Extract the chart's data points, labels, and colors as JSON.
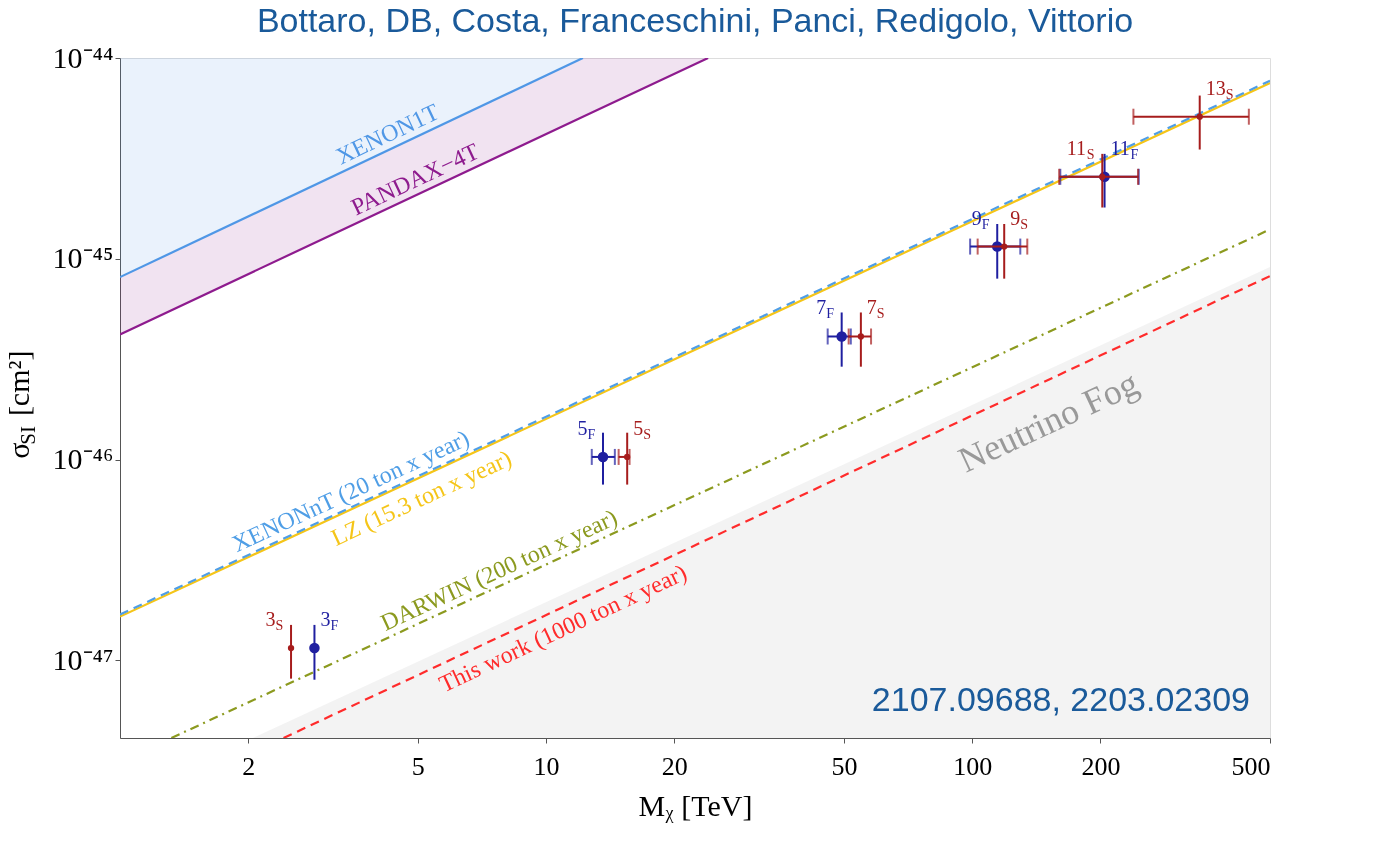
{
  "chart_data": {
    "type": "line",
    "title": "Bottaro, DB, Costa, Franceschini, Panci, Redigolo, Vittorio",
    "xlabel": "Mᵪ [TeV]",
    "ylabel": "σ$_{SI}$ [cm²]",
    "log": "xy",
    "grid": false,
    "xlim": [
      1,
      500
    ],
    "xticks": [
      2,
      5,
      10,
      20,
      50,
      100,
      200,
      500
    ],
    "ylim": [
      4.1e-48,
      1e-44
    ],
    "yticks": [
      {
        "value": 1e-47,
        "label": "10⁻⁴⁷"
      },
      {
        "value": 1e-46,
        "label": "10⁻⁴⁶"
      },
      {
        "value": 1e-45,
        "label": "10⁻⁴⁵"
      },
      {
        "value": 1e-44,
        "label": "10⁻⁴⁴"
      }
    ],
    "series": [
      {
        "name": "XENON1T",
        "color": "#4f97e6",
        "x": [
          1,
          12.2
        ],
        "values": [
          8.1e-46,
          1e-44
        ],
        "lower": [
          8.1e-46,
          1e-44
        ],
        "upper": [
          1e-44,
          1e-44
        ]
      },
      {
        "name": "PANDAX−4T",
        "color": "#8e1b8e",
        "x": [
          1,
          12.2,
          24
        ],
        "values": [
          4.2e-46,
          5.1e-45,
          1e-44
        ],
        "lower": [
          4.2e-46,
          5.1e-45,
          1e-44
        ],
        "upper": [
          8.1e-46,
          1e-44,
          1e-44
        ]
      },
      {
        "name": "LZ (15.3 ton x year)",
        "color": "#f5c518",
        "line_style": "solid",
        "x": [
          1,
          500
        ],
        "values": [
          1.65e-47,
          7.5e-45
        ]
      },
      {
        "name": "XENONnT (20 ton x year)",
        "color": "#4f9ee6",
        "line_style": "dashed",
        "x": [
          1,
          500
        ],
        "values": [
          1.69e-47,
          7.7e-45
        ]
      },
      {
        "name": "DARWIN (200 ton x year)",
        "color": "#8c9a1f",
        "line_style": "dashdot",
        "x": [
          1.32,
          500
        ],
        "values": [
          4.1e-48,
          1.4e-45
        ]
      },
      {
        "name": "This work (1000 ton x year)",
        "color": "#ff2b2b",
        "line_style": "dashed",
        "x": [
          2.42,
          500
        ],
        "values": [
          4.1e-48,
          8.2e-46
        ]
      },
      {
        "name": "Neutrino Fog",
        "type": "area",
        "color": "#999999",
        "x": [
          2.05,
          500
        ],
        "values": [
          4.1e-48,
          9.1e-46
        ]
      },
      {
        "type": "scatter",
        "color": "#1f1fa0",
        "marker": "circle",
        "x": [
          2.86,
          13.6,
          49.4,
          114.5,
          204.5
        ],
        "values": [
          1.15e-47,
          1.03e-46,
          4.1e-46,
          1.15e-45,
          2.56e-45
        ],
        "errors": [
          [
            8e-48,
            1.5e-47
          ],
          [
            7.5e-47,
            1.36e-46
          ],
          [
            2.9e-46,
            5.4e-46
          ],
          [
            7.96e-46,
            1.49e-45
          ],
          [
            1.8e-45,
            3.33e-45
          ]
        ],
        "xerrors": [
          null,
          [
            12.8,
            14.5
          ],
          [
            45.8,
            51.9
          ],
          [
            98.9,
            129.7
          ],
          [
            161,
            246
          ]
        ]
      },
      {
        "type": "scatter",
        "color": "#a61c1c",
        "marker": "circle",
        "x": [
          2.52,
          15.5,
          54.8,
          118.9,
          202,
          342
        ],
        "values": [
          1.15e-47,
          1.03e-46,
          4.1e-46,
          1.15e-45,
          2.56e-45,
          5.1e-45
        ],
        "errors": [
          [
            8.1e-48,
            1.5e-47
          ],
          [
            7.5e-47,
            1.36e-46
          ],
          [
            2.9e-46,
            5.4e-46
          ],
          [
            7.96e-46,
            1.49e-45
          ],
          [
            1.8e-45,
            3.33e-45
          ],
          [
            3.5e-45,
            6.5e-45
          ]
        ],
        "xerrors": [
          null,
          [
            14.8,
            15.7
          ],
          [
            51.3,
            57.9
          ],
          [
            103,
            134.7
          ],
          [
            160,
            245
          ],
          [
            239,
            446
          ]
        ]
      }
    ],
    "annotations": [
      "2107.09688, 2203.02309",
      {
        "text": "3$_{F}$",
        "x": 2.86,
        "y": 1.15e-47
      },
      {
        "text": "5$_{F}$",
        "x": 13.6,
        "y": 1.03e-46
      },
      {
        "text": "7$_{F}$",
        "x": 49.4,
        "y": 4.1e-46
      },
      {
        "text": "9$_{F}$",
        "x": 114.5,
        "y": 1.15e-45
      },
      {
        "text": "11$_{F}$",
        "x": 204.5,
        "y": 2.56e-45
      },
      {
        "text": "3$_{S}$",
        "x": 2.52,
        "y": 1.15e-47
      },
      {
        "text": "5$_{S}$",
        "x": 15.5,
        "y": 1.03e-46
      },
      {
        "text": "7$_{S}$",
        "x": 54.8,
        "y": 4.1e-46
      },
      {
        "text": "9$_{S}$",
        "x": 118.9,
        "y": 1.15e-45
      },
      {
        "text": "11$_{S}$",
        "x": 202,
        "y": 2.56e-45
      },
      {
        "text": "13$_{S}$",
        "x": 342,
        "y": 5.1e-45
      }
    ]
  }
}
